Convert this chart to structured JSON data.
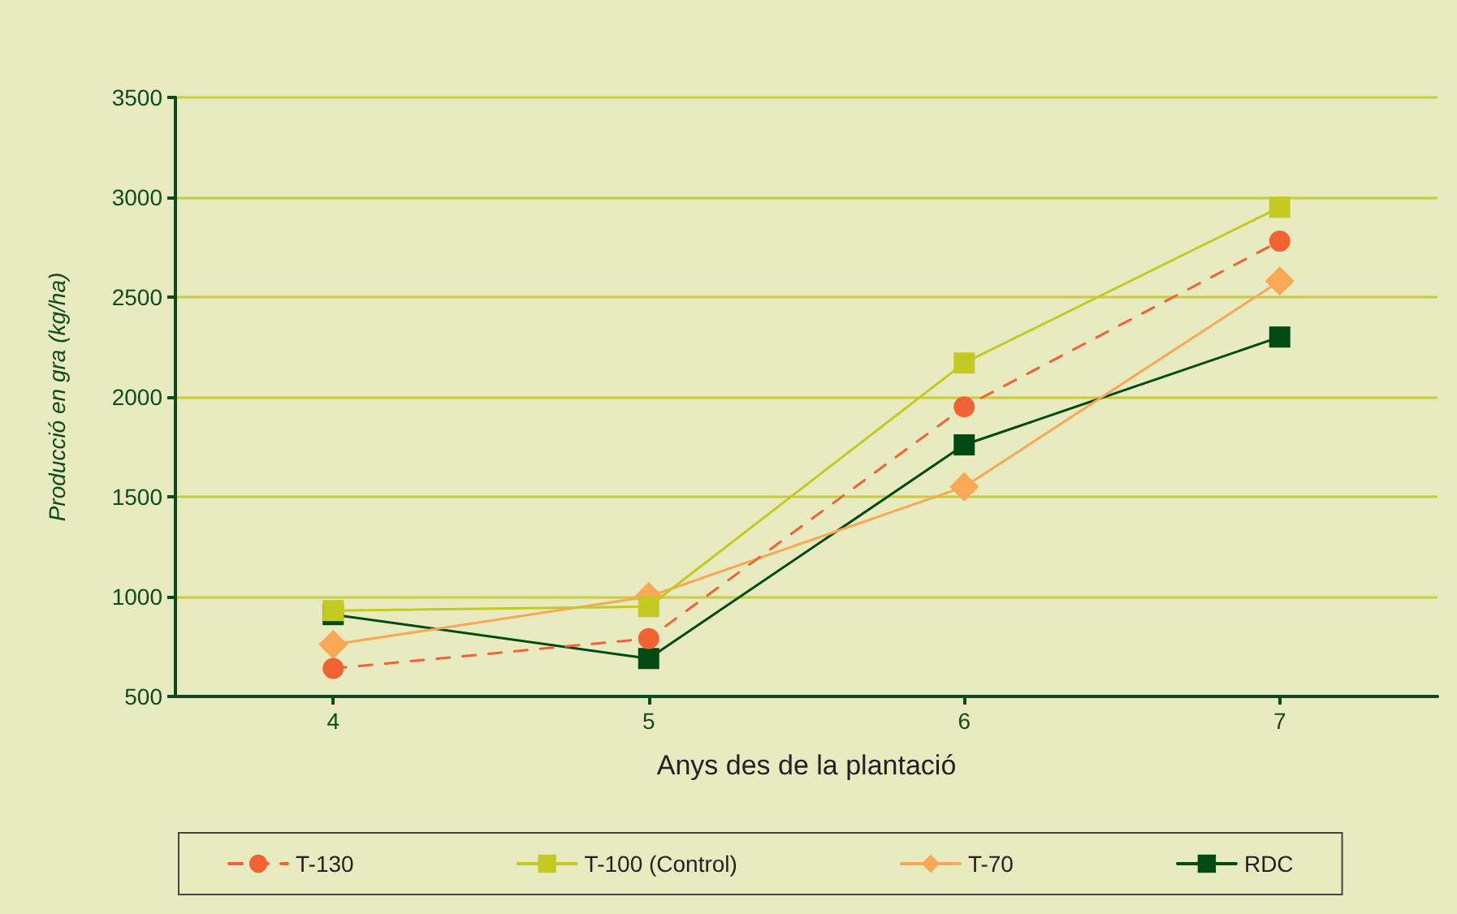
{
  "chart_data": {
    "type": "line",
    "xlabel": "Anys des de la plantació",
    "ylabel": "Producció en gra (kg/ha)",
    "x": [
      4,
      5,
      6,
      7
    ],
    "xlim": [
      3.5,
      7.5
    ],
    "xticks": [
      4,
      5,
      6,
      7
    ],
    "ylim": [
      500,
      3500
    ],
    "yticks": [
      500,
      1000,
      1500,
      2000,
      2500,
      3000,
      3500
    ],
    "grid": "y",
    "legend": "bottom",
    "series": [
      {
        "name": "T-130",
        "color": "#f26334",
        "values": [
          640,
          790,
          1950,
          2780
        ],
        "marker": "circle",
        "line_style": "dashed"
      },
      {
        "name": "T-100 (Control)",
        "color": "#c3cb22",
        "values": [
          930,
          950,
          2170,
          2950
        ],
        "marker": "square",
        "line_style": "solid"
      },
      {
        "name": "T-70",
        "color": "#f9a855",
        "values": [
          760,
          1000,
          1550,
          2580
        ],
        "marker": "diamond",
        "line_style": "solid"
      },
      {
        "name": "RDC",
        "color": "#004a14",
        "values": [
          910,
          690,
          1760,
          2300
        ],
        "marker": "square",
        "line_style": "solid"
      }
    ]
  }
}
